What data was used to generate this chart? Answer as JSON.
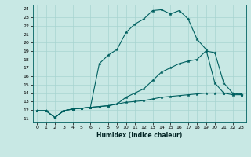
{
  "xlabel": "Humidex (Indice chaleur)",
  "bg_color": "#c8e8e4",
  "line_color": "#006060",
  "grid_color": "#a8d4d0",
  "xlim": [
    -0.5,
    23.5
  ],
  "ylim": [
    10.5,
    24.5
  ],
  "xticks": [
    0,
    1,
    2,
    3,
    4,
    5,
    6,
    7,
    8,
    9,
    10,
    11,
    12,
    13,
    14,
    15,
    16,
    17,
    18,
    19,
    20,
    21,
    22,
    23
  ],
  "yticks": [
    11,
    12,
    13,
    14,
    15,
    16,
    17,
    18,
    19,
    20,
    21,
    22,
    23,
    24
  ],
  "line1_x": [
    0,
    1,
    2,
    3,
    4,
    5,
    6,
    7,
    8,
    9,
    10,
    11,
    12,
    13,
    14,
    15,
    16,
    17,
    18,
    19,
    20,
    21,
    22,
    23
  ],
  "line1_y": [
    11.9,
    11.9,
    11.1,
    11.9,
    12.1,
    12.2,
    12.3,
    12.4,
    12.5,
    12.7,
    12.9,
    13.0,
    13.1,
    13.3,
    13.5,
    13.6,
    13.7,
    13.8,
    13.9,
    14.0,
    14.0,
    14.0,
    13.8,
    13.8
  ],
  "line2_x": [
    0,
    1,
    2,
    3,
    4,
    5,
    6,
    7,
    8,
    9,
    10,
    11,
    12,
    13,
    14,
    15,
    16,
    17,
    18,
    19,
    20,
    21,
    22,
    23
  ],
  "line2_y": [
    11.9,
    11.9,
    11.1,
    11.9,
    12.1,
    12.2,
    12.3,
    12.4,
    12.5,
    12.7,
    13.5,
    14.0,
    14.5,
    15.5,
    16.5,
    17.0,
    17.5,
    17.8,
    18.0,
    19.0,
    18.8,
    15.2,
    14.0,
    13.8
  ],
  "line3_x": [
    0,
    1,
    2,
    3,
    4,
    5,
    6,
    7,
    8,
    9,
    10,
    11,
    12,
    13,
    14,
    15,
    16,
    17,
    18,
    19,
    20,
    21,
    22,
    23
  ],
  "line3_y": [
    11.9,
    11.9,
    11.1,
    11.9,
    12.1,
    12.2,
    12.3,
    17.5,
    18.5,
    19.2,
    21.2,
    22.2,
    22.8,
    23.8,
    23.9,
    23.4,
    23.8,
    22.8,
    20.4,
    19.2,
    15.2,
    14.0,
    14.0,
    13.9
  ]
}
